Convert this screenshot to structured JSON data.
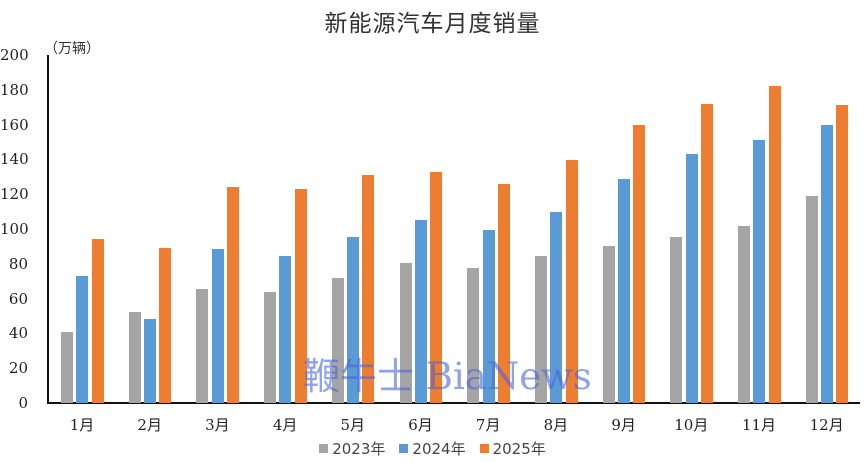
{
  "chart_data": {
    "type": "bar",
    "title": "新能源汽车月度销量",
    "ylabel": "（万辆）",
    "xlabel": "",
    "ylim": [
      0,
      200
    ],
    "yticks": [
      0,
      20,
      40,
      60,
      80,
      100,
      120,
      140,
      160,
      180,
      200
    ],
    "grid": false,
    "legend_position": "bottom",
    "categories": [
      "1月",
      "2月",
      "3月",
      "4月",
      "5月",
      "6月",
      "7月",
      "8月",
      "9月",
      "10月",
      "11月",
      "12月"
    ],
    "series": [
      {
        "name": "2023年",
        "color": "#A5A5A5",
        "values": [
          41,
          52.5,
          65.5,
          64,
          72,
          80.5,
          77.5,
          84.5,
          90,
          95.5,
          102,
          119
        ]
      },
      {
        "name": "2024年",
        "color": "#5B9BD5",
        "values": [
          73,
          48,
          88.5,
          84.5,
          95.5,
          105,
          99.5,
          110,
          128.5,
          143,
          151,
          160
        ]
      },
      {
        "name": "2025年",
        "color": "#ED7D31",
        "values": [
          94.5,
          89,
          124,
          123,
          131,
          133,
          126,
          139.5,
          160,
          172,
          182,
          171
        ]
      }
    ]
  },
  "watermark": "鞭牛士 BiaNews"
}
